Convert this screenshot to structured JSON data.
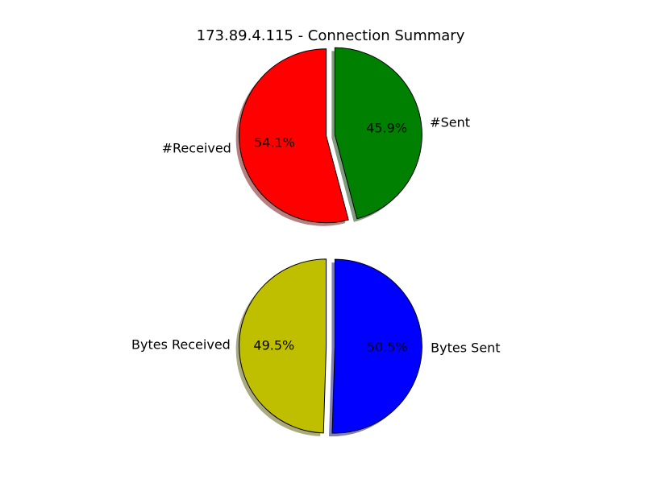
{
  "title": "173.89.4.115 - Connection Summary",
  "chart_data": [
    {
      "type": "pie",
      "slices": [
        {
          "label": "#Received",
          "percent": 54.1,
          "pct_label": "54.1%",
          "color": "#ff0000"
        },
        {
          "label": "#Sent",
          "percent": 45.9,
          "pct_label": "45.9%",
          "color": "#008000"
        }
      ],
      "explode": true,
      "shadow": true,
      "start_angle_deg": 90
    },
    {
      "type": "pie",
      "slices": [
        {
          "label": "Bytes Received",
          "percent": 49.5,
          "pct_label": "49.5%",
          "color": "#bfbf00"
        },
        {
          "label": "Bytes Sent",
          "percent": 50.5,
          "pct_label": "50.5%",
          "color": "#0000ff"
        }
      ],
      "explode": true,
      "shadow": true,
      "start_angle_deg": 90
    }
  ]
}
